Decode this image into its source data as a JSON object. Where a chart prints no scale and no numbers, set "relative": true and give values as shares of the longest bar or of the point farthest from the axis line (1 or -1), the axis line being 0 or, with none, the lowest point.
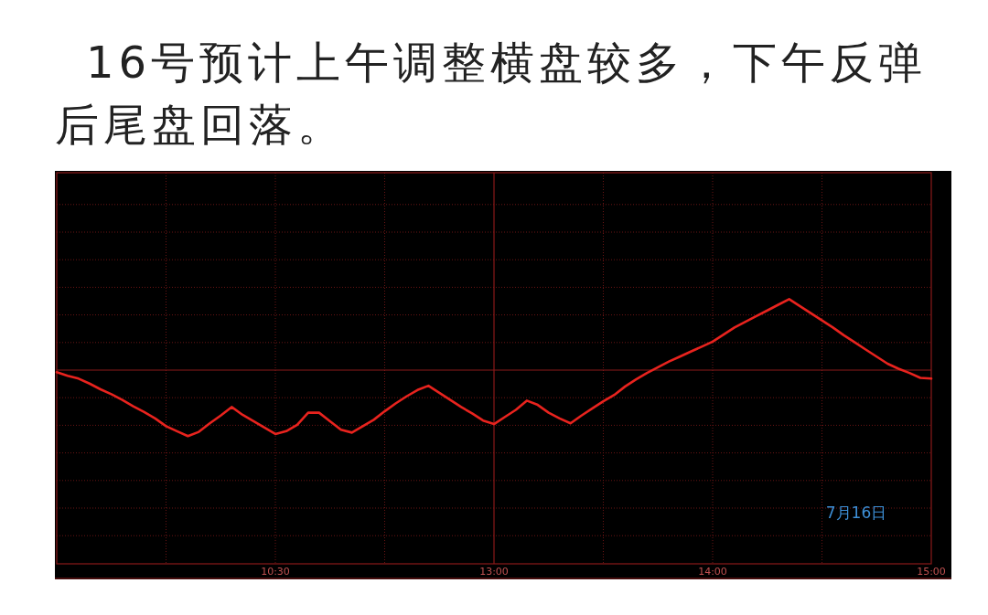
{
  "chart_data": {
    "type": "line",
    "title": "16号预计上午调整横盘较多，下午反弹后尾盘回落。",
    "relative": true,
    "categories": [
      null,
      null,
      null,
      null,
      null,
      null,
      null,
      null,
      null,
      null,
      null,
      null,
      null,
      null,
      null,
      null,
      null,
      null,
      null,
      null,
      "10:30",
      null,
      null,
      null,
      null,
      null,
      null,
      null,
      null,
      null,
      null,
      null,
      null,
      null,
      null,
      null,
      null,
      null,
      null,
      null,
      "13:00",
      null,
      null,
      null,
      null,
      null,
      null,
      null,
      null,
      null,
      null,
      null,
      null,
      null,
      null,
      null,
      null,
      null,
      null,
      null,
      "14:00",
      null,
      null,
      null,
      null,
      null,
      null,
      null,
      null,
      null,
      null,
      null,
      null,
      null,
      null,
      null,
      null,
      null,
      null,
      null,
      "15:00"
    ],
    "series": [
      {
        "color": "#e8231e",
        "values": [
          -0.03,
          -0.08,
          -0.12,
          -0.19,
          -0.27,
          -0.34,
          -0.42,
          -0.51,
          -0.59,
          -0.68,
          -0.79,
          -0.86,
          -0.93,
          -0.87,
          -0.75,
          -0.64,
          -0.52,
          -0.63,
          -0.72,
          -0.81,
          -0.9,
          -0.86,
          -0.77,
          -0.6,
          -0.6,
          -0.72,
          -0.84,
          -0.88,
          -0.79,
          -0.7,
          -0.58,
          -0.47,
          -0.37,
          -0.28,
          -0.22,
          -0.32,
          -0.42,
          -0.52,
          -0.61,
          -0.71,
          -0.76,
          -0.66,
          -0.56,
          -0.43,
          -0.49,
          -0.6,
          -0.68,
          -0.75,
          -0.64,
          -0.54,
          -0.44,
          -0.35,
          -0.23,
          -0.13,
          -0.04,
          0.04,
          0.12,
          0.19,
          0.26,
          0.33,
          0.4,
          0.5,
          0.6,
          0.68,
          0.76,
          0.84,
          0.92,
          1,
          0.9,
          0.8,
          0.7,
          0.6,
          0.49,
          0.39,
          0.29,
          0.19,
          0.09,
          0.02,
          -0.04,
          -0.11,
          -0.12
        ]
      }
    ],
    "ref_lines": [
      {
        "axis": "y",
        "value": 0,
        "color": "#8b1a1a"
      }
    ],
    "grid": true,
    "annotations": [
      "7月16日"
    ]
  }
}
